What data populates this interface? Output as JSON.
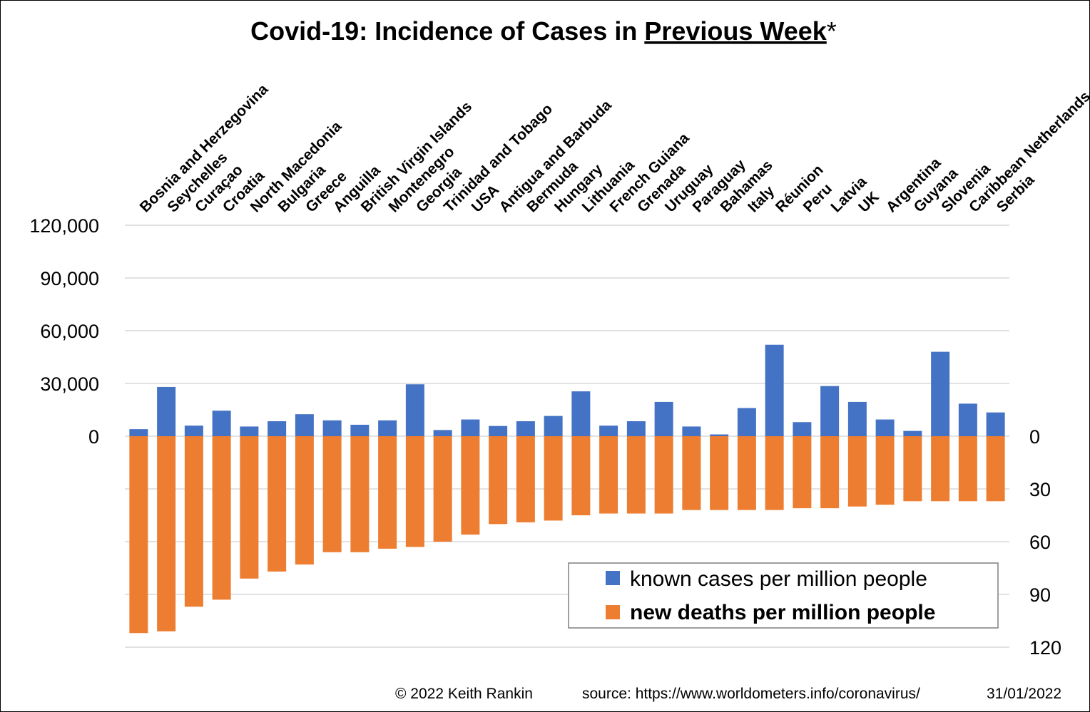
{
  "colors": {
    "cases": "#4472C4",
    "deaths": "#ED7D31",
    "grid": "#D9D9D9"
  },
  "chart_data": {
    "type": "bar",
    "title_main": "Covid-19: Incidence of Cases in ",
    "title_emph": "Previous Week",
    "title_suffix": "*",
    "categories": [
      "Bosnia and Herzegovina",
      "Seychelles",
      "Curaçao",
      "Croatia",
      "North Macedonia",
      "Bulgaria",
      "Greece",
      "Anguilla",
      "British Virgin Islands",
      "Montenegro",
      "Georgia",
      "Trinidad and Tobago",
      "USA",
      "Antigua and Barbuda",
      "Bermuda",
      "Hungary",
      "Lithuania",
      "French Guiana",
      "Grenada",
      "Uruguay",
      "Paraguay",
      "Bahamas",
      "Italy",
      "Réunion",
      "Peru",
      "Latvia",
      "UK",
      "Argentina",
      "Guyana",
      "Slovenia",
      "Caribbean Netherlands",
      "Serbia"
    ],
    "series": [
      {
        "name": "known cases per million people",
        "axis": "left",
        "values": [
          4000,
          28000,
          6000,
          14500,
          5500,
          8500,
          12500,
          9000,
          6500,
          9000,
          29500,
          3500,
          9500,
          5800,
          8500,
          11500,
          25500,
          6000,
          8500,
          19500,
          5500,
          1000,
          16000,
          52000,
          8000,
          28500,
          19500,
          9500,
          3000,
          48000,
          18500,
          13500
        ]
      },
      {
        "name": "new deaths per million people",
        "axis": "right",
        "values": [
          112,
          111,
          97,
          93,
          81,
          77,
          73,
          66,
          66,
          64,
          63,
          60,
          56,
          50,
          49,
          48,
          45,
          44,
          44,
          44,
          42,
          42,
          42,
          42,
          41,
          41,
          40,
          39,
          37,
          37,
          37,
          37
        ]
      }
    ],
    "y_left": {
      "min": -120000,
      "max": 120000,
      "ticks": [
        120000,
        90000,
        60000,
        30000,
        0
      ],
      "tick_labels": [
        "120,000",
        "90,000",
        "60,000",
        "30,000",
        "0"
      ]
    },
    "y_right": {
      "min": -120,
      "max": 120,
      "ticks": [
        0,
        30,
        60,
        90,
        120
      ],
      "tick_labels": [
        "0",
        "30",
        "60",
        "90",
        "120"
      ],
      "inverted": true
    },
    "grid": true,
    "legend_position": "bottom-right"
  },
  "footer": {
    "copyright": "© 2022   Keith Rankin",
    "source": "source: https://www.worldometers.info/coronavirus/",
    "date": "31/01/2022"
  }
}
